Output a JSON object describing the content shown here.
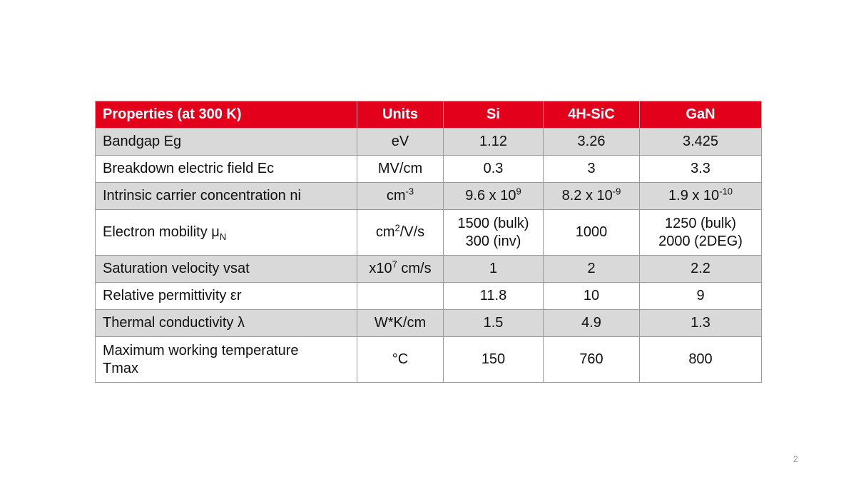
{
  "table": {
    "header": [
      "Properties (at 300 K)",
      "Units",
      "Si",
      "4H-SiC",
      "GaN"
    ],
    "rows": [
      [
        "Bandgap Eg",
        "eV",
        "1.12",
        "3.26",
        "3.425"
      ],
      [
        "Breakdown electric field Ec",
        "MV/cm",
        "0.3",
        "3",
        "3.3"
      ],
      [
        "Intrinsic carrier concentration ni",
        [
          "cm",
          {
            "sup": "-3"
          }
        ],
        [
          "9.6 x 10",
          {
            "sup": "9"
          }
        ],
        [
          "8.2 x 10",
          {
            "sup": "-9"
          }
        ],
        [
          "1.9 x 10",
          {
            "sup": "-10"
          }
        ]
      ],
      [
        [
          "Electron mobility μ",
          {
            "sub": "N"
          }
        ],
        [
          "cm",
          {
            "sup": "2"
          },
          "/V/s"
        ],
        {
          "lines": [
            "1500 (bulk)",
            "300 (inv)"
          ]
        },
        "1000",
        {
          "lines": [
            "1250 (bulk)",
            "2000 (2DEG)"
          ]
        }
      ],
      [
        "Saturation velocity vsat",
        [
          "x10",
          {
            "sup": "7"
          },
          " cm/s"
        ],
        "1",
        "2",
        "2.2"
      ],
      [
        "Relative permittivity εr",
        null,
        "11.8",
        "10",
        "9"
      ],
      [
        "Thermal conductivity λ",
        "W*K/cm",
        "1.5",
        "4.9",
        "1.3"
      ],
      [
        {
          "lines": [
            "Maximum working temperature",
            "Tmax"
          ]
        },
        "°C",
        "150",
        "760",
        "800"
      ]
    ]
  },
  "page_number": "2"
}
